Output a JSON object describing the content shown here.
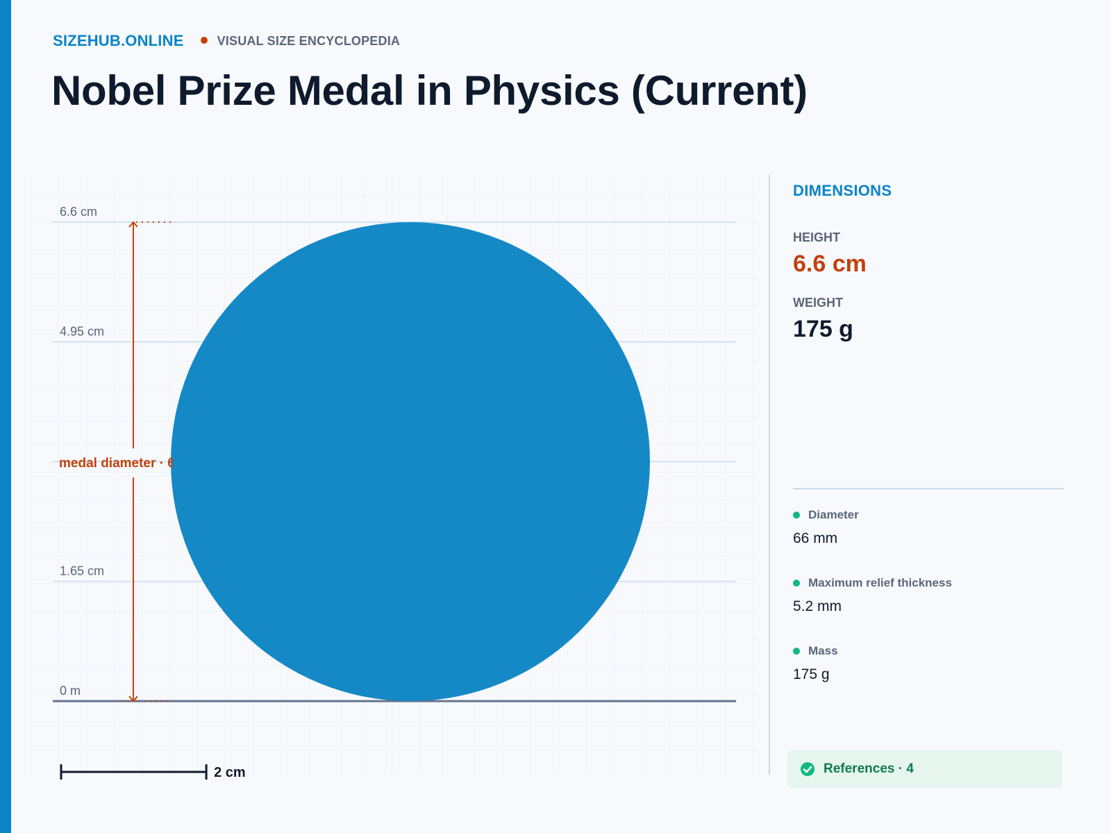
{
  "brand": "SIZEHUB.ONLINE",
  "tagline": "VISUAL SIZE ENCYCLOPEDIA",
  "title": "Nobel Prize Medal in Physics (Current)",
  "colors": {
    "accent": "#0a84c6",
    "dimension": "#c2410c",
    "medal": "#1589c6",
    "ok": "#10b981"
  },
  "diagram": {
    "unit": "cm",
    "max_value": 6.6,
    "ticks": [
      {
        "value": 6.6,
        "label": "6.6 cm"
      },
      {
        "value": 4.95,
        "label": "4.95 cm"
      },
      {
        "value": 3.3,
        "label": ""
      },
      {
        "value": 1.65,
        "label": "1.65 cm"
      },
      {
        "value": 0,
        "label": "0 m"
      }
    ],
    "object": {
      "shape": "circle",
      "diameter_cm": 6.6
    },
    "dimension_label": "medal diameter · 6.6 cm",
    "scale_bar": {
      "value": 2,
      "label": "2 cm"
    }
  },
  "panel": {
    "heading": "DIMENSIONS",
    "height_label": "HEIGHT",
    "height_value": "6.6 cm",
    "weight_label": "WEIGHT",
    "weight_value": "175 g",
    "properties": [
      {
        "name": "Diameter",
        "value": "66 mm"
      },
      {
        "name": "Maximum relief thickness",
        "value": "5.2 mm"
      },
      {
        "name": "Mass",
        "value": "175 g"
      }
    ],
    "references": "References · 4"
  }
}
